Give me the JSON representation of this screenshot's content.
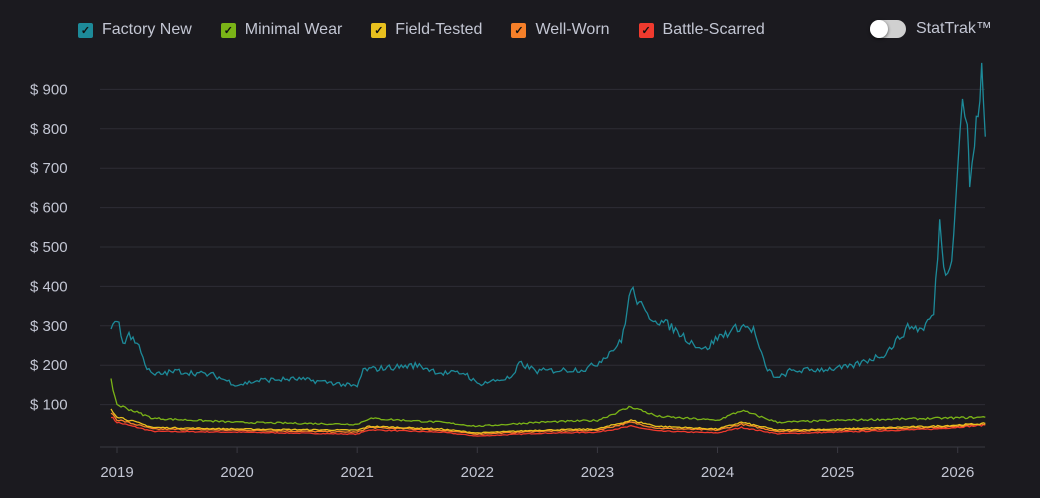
{
  "chart_data": {
    "type": "line",
    "title": "",
    "xlabel": "",
    "ylabel": "",
    "xlim": [
      2018.95,
      2026.23
    ],
    "ylim": [
      0,
      950
    ],
    "grid": true,
    "legend_position": "top-left",
    "x_ticks": [
      "2019",
      "2020",
      "2021",
      "2022",
      "2023",
      "2024",
      "2025",
      "2026"
    ],
    "y_ticks": [
      {
        "v": 100,
        "label": "$ 100"
      },
      {
        "v": 200,
        "label": "$ 200"
      },
      {
        "v": 300,
        "label": "$ 300"
      },
      {
        "v": 400,
        "label": "$ 400"
      },
      {
        "v": 500,
        "label": "$ 500"
      },
      {
        "v": 600,
        "label": "$ 600"
      },
      {
        "v": 700,
        "label": "$ 700"
      },
      {
        "v": 800,
        "label": "$ 800"
      },
      {
        "v": 900,
        "label": "$ 900"
      }
    ],
    "series": [
      {
        "name": "Factory New",
        "color": "#1d8a99",
        "points": [
          [
            2018.95,
            300
          ],
          [
            2019.0,
            320
          ],
          [
            2019.05,
            255
          ],
          [
            2019.1,
            280
          ],
          [
            2019.2,
            240
          ],
          [
            2019.25,
            190
          ],
          [
            2019.3,
            175
          ],
          [
            2019.5,
            185
          ],
          [
            2019.8,
            175
          ],
          [
            2020.0,
            150
          ],
          [
            2020.2,
            162
          ],
          [
            2020.5,
            165
          ],
          [
            2020.8,
            155
          ],
          [
            2021.0,
            145
          ],
          [
            2021.05,
            188
          ],
          [
            2021.3,
            195
          ],
          [
            2021.5,
            200
          ],
          [
            2021.7,
            180
          ],
          [
            2021.9,
            180
          ],
          [
            2022.0,
            152
          ],
          [
            2022.3,
            170
          ],
          [
            2022.35,
            205
          ],
          [
            2022.5,
            185
          ],
          [
            2022.9,
            190
          ],
          [
            2023.0,
            205
          ],
          [
            2023.2,
            260
          ],
          [
            2023.28,
            395
          ],
          [
            2023.4,
            330
          ],
          [
            2023.6,
            300
          ],
          [
            2023.8,
            255
          ],
          [
            2023.9,
            240
          ],
          [
            2024.0,
            270
          ],
          [
            2024.2,
            300
          ],
          [
            2024.3,
            290
          ],
          [
            2024.4,
            195
          ],
          [
            2024.5,
            165
          ],
          [
            2024.6,
            185
          ],
          [
            2024.9,
            190
          ],
          [
            2025.1,
            195
          ],
          [
            2025.4,
            230
          ],
          [
            2025.6,
            300
          ],
          [
            2025.7,
            290
          ],
          [
            2025.8,
            330
          ],
          [
            2025.85,
            560
          ],
          [
            2025.9,
            420
          ],
          [
            2025.95,
            480
          ],
          [
            2026.0,
            700
          ],
          [
            2026.04,
            890
          ],
          [
            2026.08,
            800
          ],
          [
            2026.1,
            660
          ],
          [
            2026.14,
            760
          ],
          [
            2026.2,
            940
          ],
          [
            2026.23,
            780
          ]
        ]
      },
      {
        "name": "Minimal Wear",
        "color": "#7ab317",
        "points": [
          [
            2018.95,
            160
          ],
          [
            2019.0,
            100
          ],
          [
            2019.3,
            65
          ],
          [
            2020.0,
            55
          ],
          [
            2021.0,
            50
          ],
          [
            2021.1,
            65
          ],
          [
            2021.7,
            55
          ],
          [
            2022.0,
            45
          ],
          [
            2022.5,
            55
          ],
          [
            2023.0,
            60
          ],
          [
            2023.28,
            95
          ],
          [
            2023.5,
            70
          ],
          [
            2024.0,
            60
          ],
          [
            2024.2,
            85
          ],
          [
            2024.5,
            55
          ],
          [
            2025.0,
            60
          ],
          [
            2025.8,
            65
          ],
          [
            2026.23,
            68
          ]
        ]
      },
      {
        "name": "Field-Tested",
        "color": "#e8c01e",
        "points": [
          [
            2018.95,
            90
          ],
          [
            2019.0,
            70
          ],
          [
            2019.3,
            42
          ],
          [
            2020.0,
            38
          ],
          [
            2021.0,
            35
          ],
          [
            2021.1,
            45
          ],
          [
            2021.7,
            38
          ],
          [
            2022.0,
            28
          ],
          [
            2022.5,
            35
          ],
          [
            2023.0,
            38
          ],
          [
            2023.28,
            60
          ],
          [
            2023.5,
            45
          ],
          [
            2024.0,
            38
          ],
          [
            2024.2,
            55
          ],
          [
            2024.5,
            35
          ],
          [
            2025.0,
            38
          ],
          [
            2025.8,
            45
          ],
          [
            2026.23,
            52
          ]
        ]
      },
      {
        "name": "Well-Worn",
        "color": "#f57f29",
        "points": [
          [
            2018.95,
            80
          ],
          [
            2019.0,
            62
          ],
          [
            2019.3,
            38
          ],
          [
            2020.0,
            35
          ],
          [
            2021.0,
            30
          ],
          [
            2021.1,
            42
          ],
          [
            2021.7,
            35
          ],
          [
            2022.0,
            25
          ],
          [
            2022.5,
            32
          ],
          [
            2023.0,
            35
          ],
          [
            2023.28,
            55
          ],
          [
            2023.5,
            40
          ],
          [
            2024.0,
            35
          ],
          [
            2024.2,
            50
          ],
          [
            2024.5,
            32
          ],
          [
            2025.0,
            35
          ],
          [
            2025.8,
            42
          ],
          [
            2026.23,
            50
          ]
        ]
      },
      {
        "name": "Battle-Scarred",
        "color": "#f03a2e",
        "points": [
          [
            2018.95,
            70
          ],
          [
            2019.0,
            55
          ],
          [
            2019.3,
            32
          ],
          [
            2020.0,
            30
          ],
          [
            2021.0,
            25
          ],
          [
            2021.1,
            36
          ],
          [
            2021.7,
            30
          ],
          [
            2022.0,
            20
          ],
          [
            2022.5,
            27
          ],
          [
            2023.0,
            30
          ],
          [
            2023.28,
            45
          ],
          [
            2023.5,
            33
          ],
          [
            2024.0,
            28
          ],
          [
            2024.2,
            42
          ],
          [
            2024.5,
            26
          ],
          [
            2025.0,
            30
          ],
          [
            2025.8,
            38
          ],
          [
            2026.23,
            48
          ]
        ]
      }
    ]
  },
  "toggle": {
    "label": "StatTrak™",
    "on": false
  }
}
